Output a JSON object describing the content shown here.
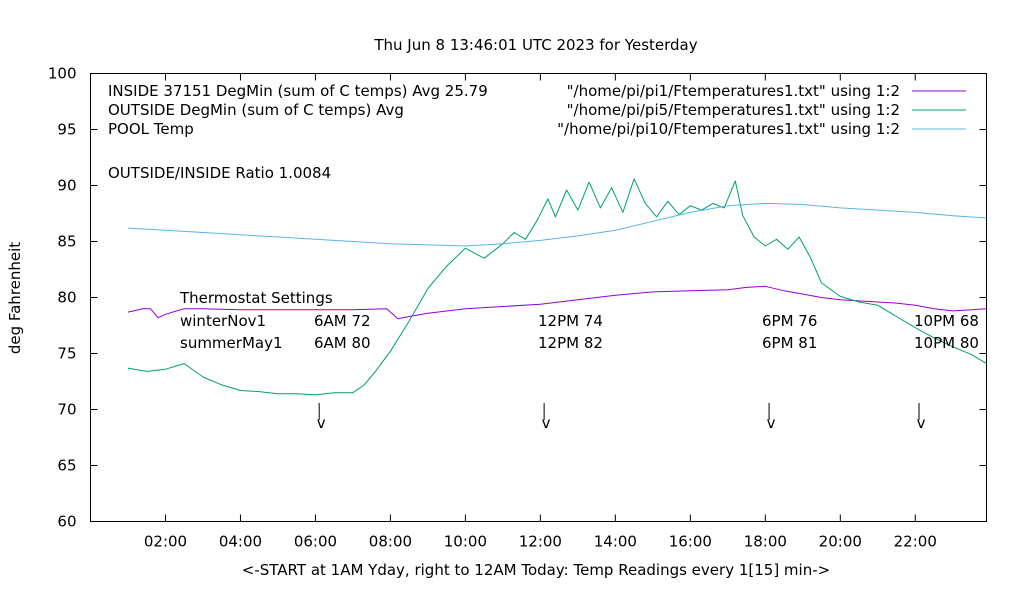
{
  "chart_data": {
    "type": "line",
    "title": "Thu Jun  8 13:46:01 UTC 2023 for Yesterday",
    "xlabel": "<-START at 1AM Yday, right to 12AM Today:  Temp Readings every 1[15] min->",
    "ylabel": "deg Fahrenheit",
    "xlim": [
      0.0,
      23.9
    ],
    "ylim": [
      60,
      100
    ],
    "x_ticks": [
      2,
      4,
      6,
      8,
      10,
      12,
      14,
      16,
      18,
      20,
      22
    ],
    "x_tick_labels": [
      "02:00",
      "04:00",
      "06:00",
      "08:00",
      "10:00",
      "12:00",
      "14:00",
      "16:00",
      "18:00",
      "20:00",
      "22:00"
    ],
    "y_ticks": [
      60,
      65,
      70,
      75,
      80,
      85,
      90,
      95,
      100
    ],
    "y_tick_labels": [
      "60",
      "65",
      "70",
      "75",
      "80",
      "85",
      "90",
      "95",
      "100"
    ],
    "grid": false,
    "legend_position": "top-left",
    "series": [
      {
        "key": "inside",
        "title": "INSIDE 37151 DegMin (sum of C temps) Avg 25.79",
        "source": "\"/home/pi/pi1/Ftemperatures1.txt\" using 1:2",
        "color": "#9400d3",
        "x": [
          1.0,
          1.4,
          1.6,
          1.8,
          2.0,
          2.3,
          2.5,
          3.0,
          4.0,
          5.0,
          6.0,
          7.0,
          7.9,
          8.2,
          8.5,
          9.0,
          10.0,
          11.0,
          12.0,
          13.0,
          14.0,
          15.0,
          16.0,
          17.0,
          17.5,
          18.0,
          18.5,
          19.0,
          19.5,
          20.0,
          20.5,
          21.0,
          21.5,
          22.0,
          22.5,
          23.0,
          23.5,
          23.9
        ],
        "values": [
          78.7,
          79.0,
          79.0,
          78.2,
          78.5,
          78.8,
          79.0,
          79.0,
          78.9,
          78.9,
          78.9,
          78.9,
          79.0,
          78.1,
          78.3,
          78.6,
          79.0,
          79.2,
          79.4,
          79.8,
          80.2,
          80.5,
          80.6,
          80.7,
          80.9,
          81.0,
          80.6,
          80.3,
          80.0,
          79.8,
          79.7,
          79.6,
          79.5,
          79.3,
          79.0,
          78.8,
          78.9,
          79.0
        ]
      },
      {
        "key": "outside",
        "title": "OUTSIDE  DegMin (sum of C temps) Avg",
        "source": "\"/home/pi/pi5/Ftemperatures1.txt\" using 1:2",
        "color": "#009e73",
        "x": [
          1.0,
          1.5,
          2.0,
          2.5,
          3.0,
          3.5,
          4.0,
          4.5,
          5.0,
          5.5,
          6.0,
          6.5,
          7.0,
          7.3,
          7.6,
          8.0,
          8.5,
          9.0,
          9.5,
          10.0,
          10.5,
          11.0,
          11.3,
          11.6,
          11.9,
          12.2,
          12.4,
          12.7,
          13.0,
          13.3,
          13.6,
          13.9,
          14.2,
          14.5,
          14.8,
          15.1,
          15.4,
          15.7,
          16.0,
          16.3,
          16.6,
          16.9,
          17.2,
          17.4,
          17.7,
          18.0,
          18.3,
          18.6,
          18.9,
          19.2,
          19.5,
          20.0,
          20.5,
          21.0,
          21.5,
          22.0,
          22.5,
          23.0,
          23.5,
          23.9
        ],
        "values": [
          73.7,
          73.4,
          73.6,
          74.1,
          72.9,
          72.2,
          71.7,
          71.6,
          71.4,
          71.4,
          71.3,
          71.5,
          71.5,
          72.2,
          73.4,
          75.2,
          77.9,
          80.8,
          82.8,
          84.4,
          83.5,
          84.8,
          85.8,
          85.2,
          86.8,
          88.8,
          87.2,
          89.6,
          87.8,
          90.3,
          88.0,
          89.8,
          87.6,
          90.6,
          88.4,
          87.2,
          88.6,
          87.4,
          88.2,
          87.8,
          88.4,
          88.0,
          90.4,
          87.3,
          85.4,
          84.6,
          85.2,
          84.3,
          85.4,
          83.6,
          81.3,
          80.1,
          79.6,
          79.3,
          78.3,
          77.3,
          76.4,
          75.6,
          74.9,
          74.1
        ]
      },
      {
        "key": "pool",
        "title": "POOL Temp",
        "source": "\"/home/pi/pi10/Ftemperatures1.txt\" using 1:2",
        "color": "#56b4e9",
        "x": [
          1.0,
          2.0,
          3.0,
          4.0,
          5.0,
          6.0,
          7.0,
          8.0,
          9.0,
          10.0,
          11.0,
          12.0,
          13.0,
          14.0,
          15.0,
          16.0,
          17.0,
          18.0,
          19.0,
          20.0,
          21.0,
          22.0,
          23.0,
          23.9
        ],
        "values": [
          86.2,
          86.0,
          85.8,
          85.6,
          85.4,
          85.2,
          85.0,
          84.8,
          84.7,
          84.6,
          84.8,
          85.1,
          85.5,
          86.0,
          86.8,
          87.6,
          88.2,
          88.4,
          88.3,
          88.0,
          87.8,
          87.6,
          87.3,
          87.1
        ]
      }
    ],
    "annotations": {
      "ratio": "OUTSIDE/INSIDE Ratio 1.0084",
      "thermostat_title": "Thermostat Settings",
      "rows": [
        {
          "label": "winterNov1",
          "settings": [
            "6AM 72",
            "12PM 74",
            "6PM 76",
            "10PM 68"
          ]
        },
        {
          "label": "summerMay1",
          "settings": [
            "6AM 80",
            "12PM 82",
            "6PM 81",
            "10PM 80"
          ]
        }
      ],
      "marker_text": "v",
      "marker_x": [
        6.1,
        12.1,
        18.1,
        22.1
      ]
    }
  }
}
